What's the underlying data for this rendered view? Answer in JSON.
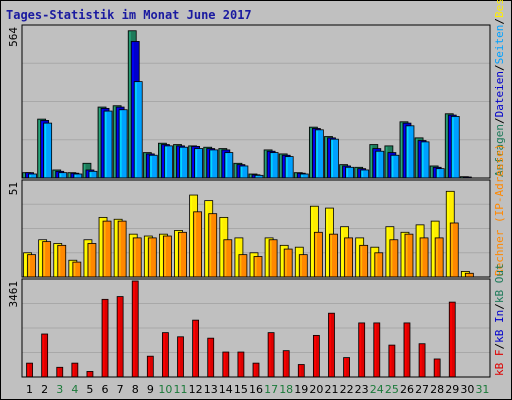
{
  "chart_data": {
    "title": "Tages-Statistik im Monat June 2017",
    "type": "bar",
    "x": [
      "1",
      "2",
      "3",
      "4",
      "5",
      "6",
      "7",
      "8",
      "9",
      "10",
      "11",
      "12",
      "13",
      "14",
      "15",
      "16",
      "17",
      "18",
      "19",
      "20",
      "21",
      "22",
      "23",
      "24",
      "25",
      "26",
      "27",
      "28",
      "29",
      "30",
      "31"
    ],
    "weekend_days": [
      "3",
      "4",
      "10",
      "11",
      "17",
      "18",
      "24",
      "25",
      "31"
    ],
    "colors": {
      "bg": "#c0c0c0",
      "plot_bg": "#c0c0c0",
      "grid": "#a8a8a8",
      "frame": "#000000",
      "weekday_label": "#000000",
      "weekend_label": "#1b7a3a",
      "hits": "#1e7a5a",
      "files": "#0000cc",
      "pages": "#00a0ff",
      "visits": "#ffee00",
      "sites": "#ff8800",
      "kbin": "#0000cc",
      "kbout": "#1e7a5a",
      "kbf": "#dd0000",
      "title": "#1a1aa0"
    },
    "panels": [
      {
        "id": "top",
        "ymax_label": "564",
        "ymax": 564,
        "series": [
          {
            "name": "Anfragen",
            "color_key": "hits",
            "values": [
              20,
              220,
              30,
              20,
              55,
              265,
              270,
              550,
              95,
              130,
              125,
              120,
              115,
              110,
              55,
              15,
              105,
              90,
              20,
              190,
              155,
              50,
              40,
              125,
              120,
              210,
              150,
              45,
              240,
              5,
              0
            ]
          },
          {
            "name": "Dateien",
            "color_key": "files",
            "values": [
              20,
              215,
              25,
              18,
              30,
              260,
              265,
              510,
              90,
              125,
              120,
              118,
              110,
              105,
              50,
              12,
              100,
              85,
              18,
              185,
              150,
              45,
              35,
              110,
              95,
              205,
              140,
              40,
              235,
              3,
              0
            ]
          },
          {
            "name": "Seiten",
            "color_key": "pages",
            "values": [
              15,
              205,
              20,
              15,
              25,
              250,
              255,
              360,
              85,
              120,
              115,
              110,
              105,
              95,
              45,
              10,
              95,
              80,
              15,
              180,
              145,
              40,
              30,
              100,
              85,
              195,
              135,
              35,
              230,
              0,
              0
            ]
          }
        ],
        "legend": [
          {
            "text": "Anfragen",
            "color_key": "hits"
          },
          {
            "text": "/",
            "color_key": "frame"
          },
          {
            "text": "Dateien",
            "color_key": "files"
          },
          {
            "text": "/",
            "color_key": "frame"
          },
          {
            "text": "Seiten",
            "color_key": "pages"
          },
          {
            "text": "/",
            "color_key": "frame"
          },
          {
            "text": "Besuche",
            "color_key": "visits"
          }
        ]
      },
      {
        "id": "mid",
        "ymax_label": "51",
        "ymax": 51,
        "series": [
          {
            "name": "Besuche",
            "color_key": "visits",
            "values": [
              13,
              20,
              18,
              9,
              20,
              32,
              31,
              23,
              22,
              23,
              25,
              44,
              41,
              32,
              21,
              13,
              21,
              17,
              16,
              38,
              37,
              27,
              21,
              16,
              27,
              24,
              28,
              30,
              46,
              3,
              0
            ]
          },
          {
            "name": "Rechner (IP-Adresse)",
            "color_key": "sites",
            "values": [
              12,
              19,
              17,
              8,
              18,
              30,
              30,
              21,
              21,
              22,
              24,
              35,
              34,
              20,
              12,
              11,
              20,
              15,
              12,
              24,
              23,
              21,
              17,
              13,
              20,
              23,
              21,
              21,
              29,
              2,
              0
            ]
          }
        ],
        "legend": [
          {
            "text": "Rechner (IP-Adresse)",
            "color_key": "sites"
          }
        ]
      },
      {
        "id": "bot",
        "ymax_label": "3461",
        "ymax": 3461,
        "series": [
          {
            "name": "kB F",
            "color_key": "kbf",
            "values": [
              500,
              1550,
              350,
              500,
              200,
              2800,
              2900,
              3461,
              750,
              1600,
              1450,
              2050,
              1400,
              900,
              900,
              500,
              1600,
              950,
              450,
              1500,
              2300,
              700,
              1950,
              1950,
              1150,
              1950,
              1200,
              650,
              2700,
              0,
              0
            ]
          }
        ],
        "legend": [
          {
            "text": "kB F",
            "color_key": "kbf"
          },
          {
            "text": "/",
            "color_key": "frame"
          },
          {
            "text": "kB In",
            "color_key": "kbin"
          },
          {
            "text": "/",
            "color_key": "frame"
          },
          {
            "text": "kB Out",
            "color_key": "kbout"
          }
        ]
      }
    ]
  }
}
